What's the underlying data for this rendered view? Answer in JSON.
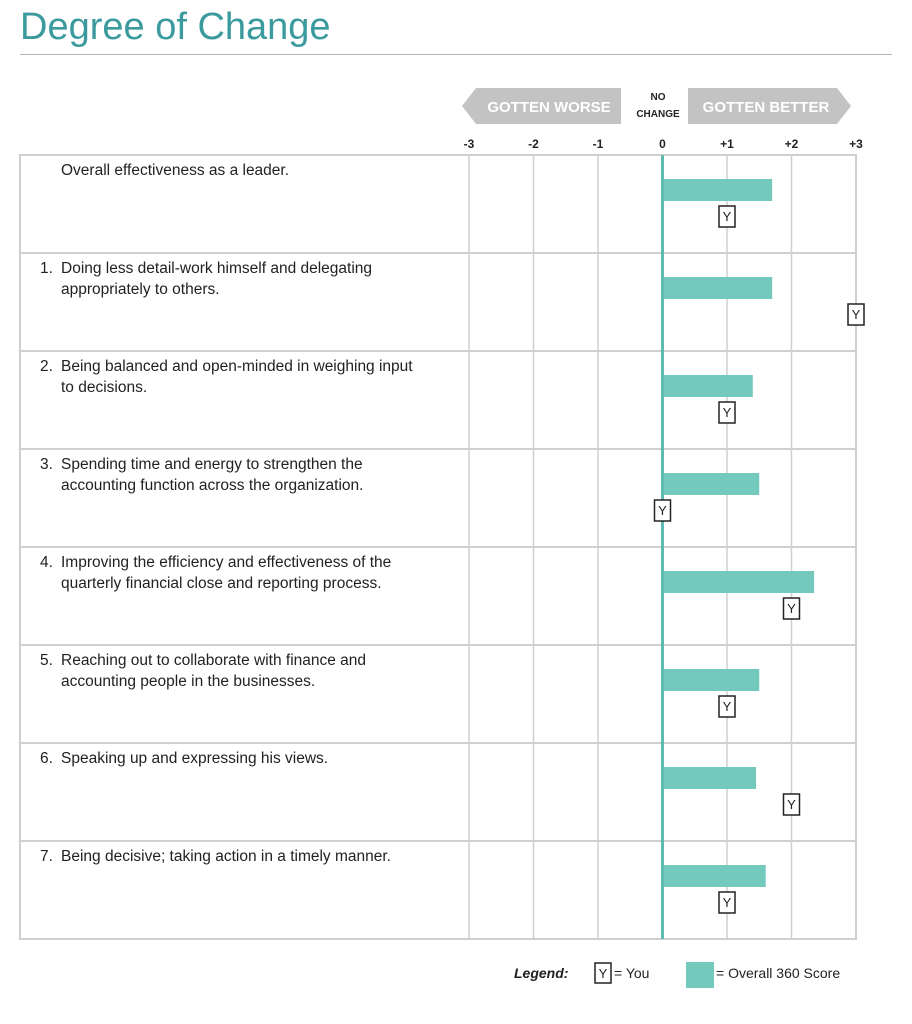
{
  "page_title": "Degree of Change",
  "header": {
    "worse_label": "GOTTEN WORSE",
    "no_change_line1": "NO",
    "no_change_line2": "CHANGE",
    "better_label": "GOTTEN BETTER"
  },
  "legend": {
    "title": "Legend:",
    "you_marker": "Y",
    "you_text": "= You",
    "overall_text": "= Overall 360 Score"
  },
  "colors": {
    "bar": "#74c9bd",
    "zero_line": "#5fbab0",
    "title": "#3b9a9d",
    "header_arrow": "#c3c3c3",
    "grid": "#cfcfcf"
  },
  "chart_data": {
    "type": "bar",
    "orientation": "horizontal",
    "title": "Degree of Change",
    "xlim": [
      -3,
      3
    ],
    "ticks": [
      {
        "value": -3,
        "label": "-3"
      },
      {
        "value": -2,
        "label": "-2"
      },
      {
        "value": -1,
        "label": "-1"
      },
      {
        "value": 0,
        "label": "0"
      },
      {
        "value": 1,
        "label": "+1"
      },
      {
        "value": 2,
        "label": "+2"
      },
      {
        "value": 3,
        "label": "+3"
      }
    ],
    "grid": true,
    "legend_position": "bottom-right",
    "series": [
      {
        "name": "Overall 360 Score",
        "values": [
          1.7,
          1.7,
          1.4,
          1.5,
          2.35,
          1.5,
          1.45,
          1.6
        ]
      },
      {
        "name": "You",
        "values": [
          1.0,
          3.0,
          1.0,
          0.0,
          2.0,
          1.0,
          2.0,
          1.0
        ]
      }
    ],
    "categories": [
      {
        "num": "",
        "text": "Overall effectiveness as a leader."
      },
      {
        "num": "1.",
        "text": "Doing less detail-work himself and delegating appropriately to others."
      },
      {
        "num": "2.",
        "text": "Being balanced and open-minded in weighing input to decisions."
      },
      {
        "num": "3.",
        "text": "Spending time and energy to strengthen the accounting function across the organization."
      },
      {
        "num": "4.",
        "text": "Improving the efficiency and effectiveness of the quarterly financial close and reporting process."
      },
      {
        "num": "5.",
        "text": "Reaching out to collaborate with finance and accounting people in the businesses."
      },
      {
        "num": "6.",
        "text": "Speaking up and expressing his views."
      },
      {
        "num": "7.",
        "text": "Being decisive; taking action in a timely manner."
      }
    ]
  }
}
